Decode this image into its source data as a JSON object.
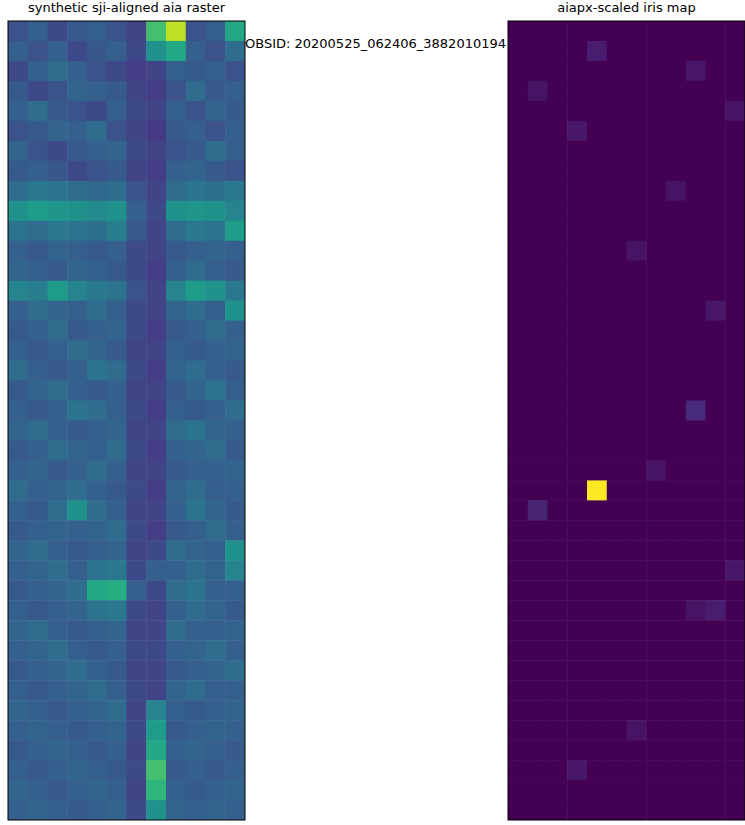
{
  "title": "OBSID: 20200525_062406_3882010194",
  "chart_data": [
    {
      "type": "heatmap",
      "title": "synthetic sji-aligned aia raster",
      "color": "viridis",
      "tick_labels": false,
      "zlim": [
        0,
        1
      ],
      "cells": [
        [
          0.25,
          0.3,
          0.22,
          0.28,
          0.3,
          0.25,
          0.2,
          0.7,
          0.9,
          0.25,
          0.3,
          0.6
        ],
        [
          0.3,
          0.25,
          0.3,
          0.22,
          0.27,
          0.3,
          0.22,
          0.5,
          0.6,
          0.3,
          0.25,
          0.35
        ],
        [
          0.22,
          0.3,
          0.35,
          0.3,
          0.25,
          0.22,
          0.18,
          0.2,
          0.3,
          0.28,
          0.3,
          0.25
        ],
        [
          0.28,
          0.22,
          0.25,
          0.32,
          0.3,
          0.28,
          0.2,
          0.18,
          0.25,
          0.35,
          0.28,
          0.3
        ],
        [
          0.3,
          0.35,
          0.28,
          0.25,
          0.22,
          0.3,
          0.22,
          0.2,
          0.3,
          0.25,
          0.32,
          0.28
        ],
        [
          0.25,
          0.28,
          0.32,
          0.3,
          0.35,
          0.25,
          0.2,
          0.17,
          0.28,
          0.3,
          0.25,
          0.3
        ],
        [
          0.32,
          0.25,
          0.22,
          0.28,
          0.3,
          0.32,
          0.22,
          0.2,
          0.25,
          0.28,
          0.35,
          0.3
        ],
        [
          0.28,
          0.3,
          0.27,
          0.22,
          0.25,
          0.28,
          0.2,
          0.18,
          0.3,
          0.32,
          0.28,
          0.25
        ],
        [
          0.35,
          0.4,
          0.38,
          0.35,
          0.33,
          0.35,
          0.25,
          0.2,
          0.35,
          0.38,
          0.36,
          0.4
        ],
        [
          0.5,
          0.55,
          0.52,
          0.5,
          0.48,
          0.5,
          0.3,
          0.22,
          0.5,
          0.52,
          0.5,
          0.45
        ],
        [
          0.38,
          0.35,
          0.4,
          0.38,
          0.36,
          0.42,
          0.28,
          0.2,
          0.35,
          0.4,
          0.38,
          0.55
        ],
        [
          0.3,
          0.28,
          0.32,
          0.3,
          0.28,
          0.3,
          0.22,
          0.2,
          0.28,
          0.3,
          0.32,
          0.3
        ],
        [
          0.32,
          0.3,
          0.28,
          0.32,
          0.3,
          0.28,
          0.22,
          0.18,
          0.3,
          0.35,
          0.3,
          0.28
        ],
        [
          0.45,
          0.42,
          0.55,
          0.45,
          0.4,
          0.38,
          0.25,
          0.2,
          0.45,
          0.55,
          0.5,
          0.4
        ],
        [
          0.3,
          0.35,
          0.32,
          0.3,
          0.35,
          0.3,
          0.22,
          0.2,
          0.32,
          0.35,
          0.3,
          0.5
        ],
        [
          0.28,
          0.3,
          0.35,
          0.28,
          0.3,
          0.32,
          0.22,
          0.18,
          0.28,
          0.3,
          0.35,
          0.3
        ],
        [
          0.3,
          0.28,
          0.3,
          0.35,
          0.32,
          0.28,
          0.2,
          0.2,
          0.3,
          0.28,
          0.3,
          0.32
        ],
        [
          0.35,
          0.3,
          0.28,
          0.3,
          0.38,
          0.35,
          0.22,
          0.18,
          0.32,
          0.35,
          0.3,
          0.28
        ],
        [
          0.28,
          0.32,
          0.35,
          0.3,
          0.28,
          0.3,
          0.2,
          0.2,
          0.28,
          0.32,
          0.38,
          0.3
        ],
        [
          0.3,
          0.28,
          0.3,
          0.38,
          0.35,
          0.3,
          0.22,
          0.18,
          0.3,
          0.28,
          0.3,
          0.35
        ],
        [
          0.32,
          0.35,
          0.3,
          0.28,
          0.3,
          0.32,
          0.2,
          0.2,
          0.35,
          0.38,
          0.32,
          0.3
        ],
        [
          0.28,
          0.3,
          0.35,
          0.32,
          0.3,
          0.35,
          0.22,
          0.18,
          0.3,
          0.32,
          0.35,
          0.28
        ],
        [
          0.3,
          0.32,
          0.28,
          0.3,
          0.35,
          0.3,
          0.2,
          0.2,
          0.28,
          0.3,
          0.3,
          0.32
        ],
        [
          0.35,
          0.3,
          0.32,
          0.35,
          0.3,
          0.28,
          0.22,
          0.18,
          0.32,
          0.35,
          0.3,
          0.3
        ],
        [
          0.3,
          0.28,
          0.35,
          0.5,
          0.35,
          0.3,
          0.2,
          0.2,
          0.3,
          0.38,
          0.32,
          0.28
        ],
        [
          0.28,
          0.3,
          0.32,
          0.3,
          0.32,
          0.35,
          0.22,
          0.18,
          0.28,
          0.3,
          0.35,
          0.3
        ],
        [
          0.32,
          0.35,
          0.3,
          0.28,
          0.3,
          0.32,
          0.2,
          0.22,
          0.35,
          0.32,
          0.3,
          0.5
        ],
        [
          0.3,
          0.32,
          0.35,
          0.3,
          0.38,
          0.4,
          0.22,
          0.3,
          0.3,
          0.35,
          0.32,
          0.45
        ],
        [
          0.28,
          0.3,
          0.32,
          0.35,
          0.6,
          0.62,
          0.3,
          0.22,
          0.35,
          0.38,
          0.3,
          0.3
        ],
        [
          0.3,
          0.28,
          0.3,
          0.32,
          0.38,
          0.4,
          0.22,
          0.2,
          0.3,
          0.35,
          0.32,
          0.28
        ],
        [
          0.32,
          0.35,
          0.3,
          0.28,
          0.3,
          0.32,
          0.2,
          0.2,
          0.35,
          0.3,
          0.3,
          0.32
        ],
        [
          0.3,
          0.32,
          0.35,
          0.3,
          0.28,
          0.3,
          0.22,
          0.22,
          0.3,
          0.32,
          0.35,
          0.3
        ],
        [
          0.28,
          0.3,
          0.32,
          0.35,
          0.3,
          0.28,
          0.2,
          0.2,
          0.28,
          0.3,
          0.32,
          0.35
        ],
        [
          0.3,
          0.28,
          0.3,
          0.32,
          0.35,
          0.3,
          0.22,
          0.2,
          0.32,
          0.35,
          0.3,
          0.3
        ],
        [
          0.32,
          0.3,
          0.28,
          0.3,
          0.32,
          0.35,
          0.2,
          0.45,
          0.3,
          0.28,
          0.3,
          0.32
        ],
        [
          0.3,
          0.32,
          0.3,
          0.28,
          0.3,
          0.32,
          0.22,
          0.55,
          0.28,
          0.3,
          0.32,
          0.3
        ],
        [
          0.28,
          0.3,
          0.32,
          0.3,
          0.28,
          0.3,
          0.2,
          0.6,
          0.3,
          0.32,
          0.3,
          0.28
        ],
        [
          0.3,
          0.28,
          0.3,
          0.32,
          0.3,
          0.28,
          0.22,
          0.7,
          0.28,
          0.3,
          0.28,
          0.3
        ],
        [
          0.32,
          0.3,
          0.28,
          0.3,
          0.32,
          0.3,
          0.2,
          0.65,
          0.3,
          0.28,
          0.3,
          0.32
        ],
        [
          0.3,
          0.32,
          0.3,
          0.28,
          0.3,
          0.32,
          0.22,
          0.5,
          0.32,
          0.3,
          0.32,
          0.3
        ]
      ]
    },
    {
      "type": "heatmap",
      "title": "aiapx-scaled iris map",
      "color": "viridis",
      "tick_labels": false,
      "zlim": [
        0,
        1
      ],
      "cells": [
        [
          0,
          0,
          0,
          0,
          0,
          0,
          0,
          0,
          0,
          0,
          0,
          0
        ],
        [
          0,
          0,
          0,
          0,
          0.08,
          0,
          0,
          0,
          0,
          0,
          0,
          0
        ],
        [
          0,
          0,
          0,
          0,
          0,
          0,
          0,
          0,
          0,
          0.06,
          0,
          0
        ],
        [
          0,
          0.05,
          0,
          0,
          0,
          0,
          0,
          0,
          0,
          0,
          0,
          0
        ],
        [
          0,
          0,
          0,
          0,
          0,
          0,
          0,
          0,
          0,
          0,
          0,
          0.05
        ],
        [
          0,
          0,
          0,
          0.06,
          0,
          0,
          0,
          0,
          0,
          0,
          0,
          0
        ],
        [
          0,
          0,
          0,
          0,
          0,
          0,
          0,
          0,
          0,
          0,
          0,
          0
        ],
        [
          0,
          0,
          0,
          0,
          0,
          0,
          0,
          0,
          0,
          0,
          0,
          0
        ],
        [
          0,
          0,
          0,
          0,
          0,
          0,
          0,
          0,
          0.05,
          0,
          0,
          0
        ],
        [
          0,
          0,
          0,
          0,
          0,
          0,
          0,
          0,
          0,
          0,
          0,
          0
        ],
        [
          0,
          0,
          0,
          0,
          0,
          0,
          0,
          0,
          0,
          0,
          0,
          0
        ],
        [
          0,
          0,
          0,
          0,
          0,
          0,
          0.05,
          0,
          0,
          0,
          0,
          0
        ],
        [
          0,
          0,
          0,
          0,
          0,
          0,
          0,
          0,
          0,
          0,
          0,
          0
        ],
        [
          0,
          0,
          0,
          0,
          0,
          0,
          0,
          0,
          0,
          0,
          0,
          0
        ],
        [
          0,
          0,
          0,
          0,
          0,
          0,
          0,
          0,
          0,
          0,
          0.06,
          0
        ],
        [
          0,
          0,
          0,
          0,
          0,
          0,
          0,
          0,
          0,
          0,
          0,
          0
        ],
        [
          0,
          0,
          0,
          0,
          0,
          0,
          0,
          0,
          0,
          0,
          0,
          0
        ],
        [
          0,
          0,
          0,
          0,
          0,
          0,
          0,
          0,
          0,
          0,
          0,
          0
        ],
        [
          0,
          0,
          0,
          0,
          0,
          0,
          0,
          0,
          0,
          0,
          0,
          0
        ],
        [
          0,
          0,
          0,
          0,
          0,
          0,
          0,
          0,
          0,
          0.12,
          0,
          0
        ],
        [
          0,
          0,
          0,
          0,
          0,
          0,
          0,
          0,
          0,
          0,
          0,
          0
        ],
        [
          0,
          0,
          0,
          0,
          0,
          0,
          0,
          0,
          0,
          0,
          0,
          0
        ],
        [
          0,
          0,
          0,
          0,
          0,
          0,
          0,
          0.05,
          0,
          0,
          0,
          0
        ],
        [
          0,
          0,
          0,
          0,
          1,
          0,
          0,
          0,
          0,
          0,
          0,
          0
        ],
        [
          0,
          0.1,
          0,
          0,
          0,
          0,
          0,
          0,
          0,
          0,
          0,
          0
        ],
        [
          0,
          0,
          0,
          0,
          0,
          0,
          0,
          0,
          0,
          0,
          0,
          0
        ],
        [
          0,
          0,
          0,
          0,
          0,
          0,
          0,
          0,
          0,
          0,
          0,
          0
        ],
        [
          0,
          0,
          0,
          0,
          0,
          0,
          0,
          0,
          0,
          0,
          0,
          0.06
        ],
        [
          0,
          0,
          0,
          0,
          0,
          0,
          0,
          0,
          0,
          0,
          0,
          0
        ],
        [
          0,
          0,
          0,
          0,
          0,
          0,
          0,
          0,
          0,
          0.05,
          0.08,
          0
        ],
        [
          0,
          0,
          0,
          0,
          0,
          0,
          0,
          0,
          0,
          0,
          0,
          0
        ],
        [
          0,
          0,
          0,
          0,
          0,
          0,
          0,
          0,
          0,
          0,
          0,
          0
        ],
        [
          0,
          0,
          0,
          0,
          0,
          0,
          0,
          0,
          0,
          0,
          0,
          0
        ],
        [
          0,
          0,
          0,
          0,
          0,
          0,
          0,
          0,
          0,
          0,
          0,
          0
        ],
        [
          0,
          0,
          0,
          0,
          0,
          0,
          0,
          0,
          0,
          0,
          0,
          0
        ],
        [
          0,
          0,
          0,
          0,
          0,
          0,
          0.05,
          0,
          0,
          0,
          0,
          0
        ],
        [
          0,
          0,
          0,
          0,
          0,
          0,
          0,
          0,
          0,
          0,
          0,
          0
        ],
        [
          0,
          0,
          0,
          0.06,
          0,
          0,
          0,
          0,
          0,
          0,
          0,
          0
        ],
        [
          0,
          0,
          0,
          0,
          0,
          0,
          0,
          0,
          0,
          0,
          0,
          0
        ],
        [
          0,
          0,
          0,
          0,
          0,
          0,
          0,
          0,
          0,
          0,
          0,
          0
        ]
      ]
    }
  ]
}
